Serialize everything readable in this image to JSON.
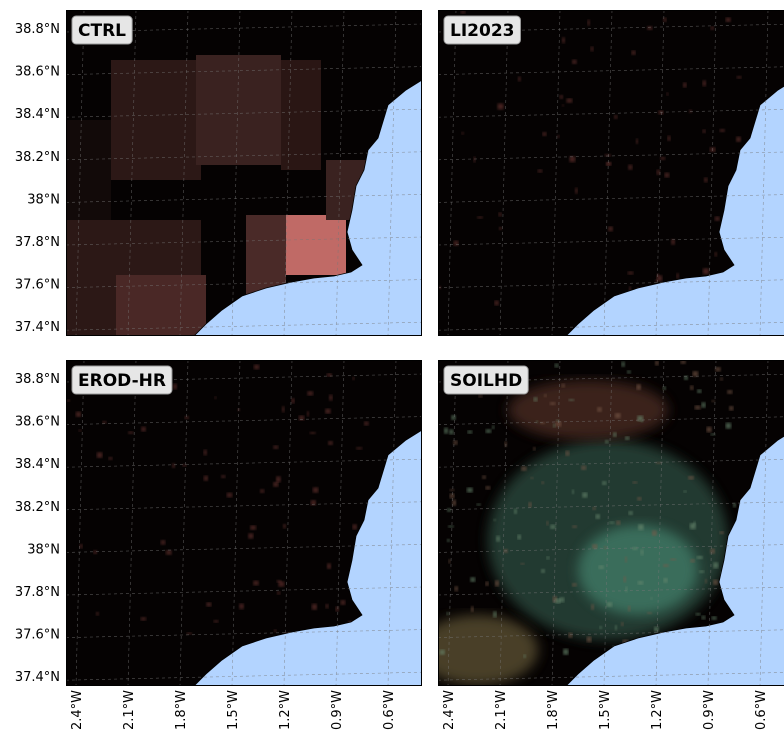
{
  "panels": [
    {
      "label": "CTRL"
    },
    {
      "label": "LI2023"
    },
    {
      "label": "EROD-HR"
    },
    {
      "label": "SOILHD"
    }
  ],
  "lat_ticks": [
    "38.8°N",
    "38.6°N",
    "38.4°N",
    "38.2°N",
    "38°N",
    "37.8°N",
    "37.6°N",
    "37.4°N"
  ],
  "lon_ticks": [
    "2.4°W",
    "2.1°W",
    "1.8°W",
    "1.5°W",
    "1.2°W",
    "0.9°W",
    "0.6°W"
  ]
}
